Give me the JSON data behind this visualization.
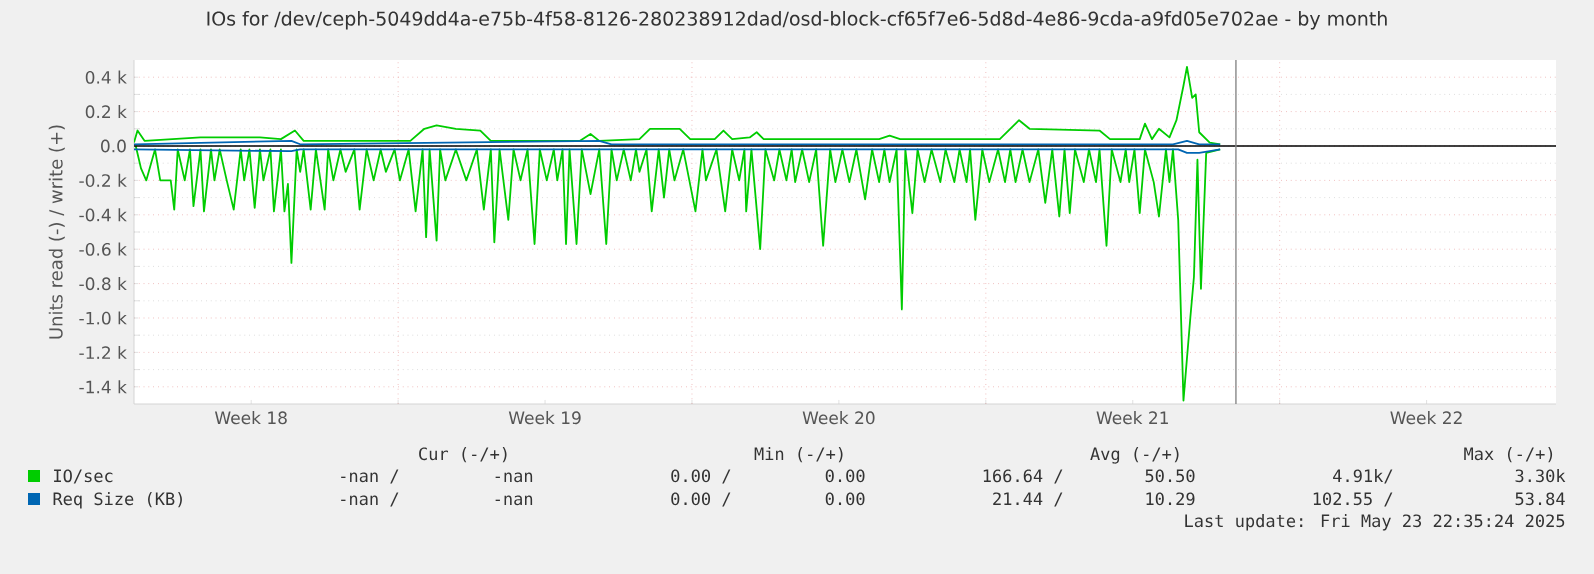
{
  "chart_data": {
    "type": "line",
    "title": "IOs for /dev/ceph-5049dd4a-e75b-4f58-8126-280238912dad/osd-block-cf65f7e6-5d8d-4e86-9cda-a9fd05e702ae - by month",
    "ylabel": "Units read (-) / write (+)",
    "xlim": [
      "2025-04-28T17:00",
      "2025-06-01T14:00"
    ],
    "xticks": [
      {
        "value": "2025-05-01T12:00",
        "label": "Week 18"
      },
      {
        "value": "2025-05-08T12:00",
        "label": "Week 19"
      },
      {
        "value": "2025-05-15T12:00",
        "label": "Week 20"
      },
      {
        "value": "2025-05-22T12:00",
        "label": "Week 21"
      },
      {
        "value": "2025-05-29T12:00",
        "label": "Week 22"
      },
      {
        "value": "2025-05-05T00:00",
        "label": null
      },
      {
        "value": "2025-05-12T00:00",
        "label": null
      },
      {
        "value": "2025-05-19T00:00",
        "label": null
      },
      {
        "value": "2025-05-26T00:00",
        "label": null
      }
    ],
    "ylim": [
      -1.5,
      0.5
    ],
    "yticks": [
      {
        "value": -1.4,
        "label": "-1.4 k"
      },
      {
        "value": -1.2,
        "label": "-1.2 k"
      },
      {
        "value": -1.0,
        "label": "-1.0 k"
      },
      {
        "value": -0.8,
        "label": "-0.8 k"
      },
      {
        "value": -0.6,
        "label": "-0.6 k"
      },
      {
        "value": -0.4,
        "label": "-0.4 k"
      },
      {
        "value": -0.2,
        "label": "-0.2 k"
      },
      {
        "value": 0,
        "label": "0.0"
      },
      {
        "value": 0.2,
        "label": "0.2 k"
      },
      {
        "value": 0.4,
        "label": "0.4 k"
      }
    ],
    "grid": true,
    "legend": "bottom",
    "ref_lines": [
      {
        "axis": "y",
        "value": 0,
        "color": "#000000"
      },
      {
        "axis": "x",
        "value": "2025-05-24T23:00",
        "color": "#888888"
      }
    ],
    "series": [
      {
        "name": "IO/sec",
        "color": "#00cc00",
        "x": [
          "2025-04-28T17:00",
          "2025-04-28T19:00",
          "2025-04-28T23:00",
          "2025-04-30T07:00",
          "2025-05-01T17:00",
          "2025-05-02T05:00",
          "2025-05-02T13:00",
          "2025-05-02T18:00",
          "2025-05-05T07:00",
          "2025-05-05T15:00",
          "2025-05-05T22:00",
          "2025-05-06T09:00",
          "2025-05-06T23:00",
          "2025-05-07T05:00",
          "2025-05-09T08:00",
          "2025-05-09T14:00",
          "2025-05-09T19:00",
          "2025-05-10T18:00",
          "2025-05-11T00:00",
          "2025-05-11T17:00",
          "2025-05-11T23:00",
          "2025-05-12T13:00",
          "2025-05-12T18:00",
          "2025-05-12T23:00",
          "2025-05-13T09:00",
          "2025-05-13T13:00",
          "2025-05-13T17:00",
          "2025-05-16T11:00",
          "2025-05-16T17:00",
          "2025-05-16T23:00",
          "2025-05-19T08:00",
          "2025-05-19T19:00",
          "2025-05-20T01:00",
          "2025-05-21T17:00",
          "2025-05-21T23:00",
          "2025-05-22T16:00",
          "2025-05-22T19:00",
          "2025-05-22T23:00",
          "2025-05-23T03:00",
          "2025-05-23T09:00",
          "2025-05-23T13:00",
          "2025-05-23T17:00",
          "2025-05-23T19:00",
          "2025-05-23T22:00",
          "2025-05-24T00:00",
          "2025-05-24T02:00",
          "2025-05-24T08:00",
          "2025-05-24T14:00"
        ],
        "values": [
          0.02,
          0.09,
          0.03,
          0.05,
          0.05,
          0.04,
          0.09,
          0.03,
          0.03,
          0.1,
          0.12,
          0.1,
          0.09,
          0.03,
          0.03,
          0.07,
          0.03,
          0.04,
          0.1,
          0.1,
          0.04,
          0.04,
          0.09,
          0.04,
          0.05,
          0.08,
          0.04,
          0.04,
          0.06,
          0.04,
          0.04,
          0.15,
          0.1,
          0.09,
          0.04,
          0.04,
          0.13,
          0.04,
          0.1,
          0.05,
          0.15,
          0.35,
          0.46,
          0.28,
          0.3,
          0.08,
          0.02,
          0.01
        ]
      },
      {
        "color": "#00cc00",
        "x": [
          "2025-04-28T18:00",
          "2025-04-28T21:00",
          "2025-04-29T00:00",
          "2025-04-29T05:00",
          "2025-04-29T08:00",
          "2025-04-29T14:00",
          "2025-04-29T16:00",
          "2025-04-29T18:00",
          "2025-04-29T22:00",
          "2025-04-30T01:00",
          "2025-04-30T03:00",
          "2025-04-30T07:00",
          "2025-04-30T09:00",
          "2025-04-30T13:00",
          "2025-04-30T15:00",
          "2025-04-30T18:00",
          "2025-04-30T22:00",
          "2025-05-01T02:00",
          "2025-05-01T06:00",
          "2025-05-01T08:00",
          "2025-05-01T11:00",
          "2025-05-01T14:00",
          "2025-05-01T17:00",
          "2025-05-01T19:00",
          "2025-05-01T23:00",
          "2025-05-02T01:00",
          "2025-05-02T05:00",
          "2025-05-02T07:00",
          "2025-05-02T09:00",
          "2025-05-02T11:00",
          "2025-05-02T14:00",
          "2025-05-02T16:00",
          "2025-05-02T18:00",
          "2025-05-02T22:00",
          "2025-05-03T01:00",
          "2025-05-03T06:00",
          "2025-05-03T08:00",
          "2025-05-03T11:00",
          "2025-05-03T15:00",
          "2025-05-03T18:00",
          "2025-05-03T23:00",
          "2025-05-04T02:00",
          "2025-05-04T06:00",
          "2025-05-04T10:00",
          "2025-05-04T14:00",
          "2025-05-04T17:00",
          "2025-05-04T22:00",
          "2025-05-05T01:00",
          "2025-05-05T06:00",
          "2025-05-05T10:00",
          "2025-05-05T14:00",
          "2025-05-05T16:00",
          "2025-05-05T18:00",
          "2025-05-05T22:00",
          "2025-05-06T00:00",
          "2025-05-06T03:00",
          "2025-05-06T09:00",
          "2025-05-06T15:00",
          "2025-05-06T21:00",
          "2025-05-07T01:00",
          "2025-05-07T05:00",
          "2025-05-07T07:00",
          "2025-05-07T10:00",
          "2025-05-07T15:00",
          "2025-05-07T18:00",
          "2025-05-07T22:00",
          "2025-05-08T02:00",
          "2025-05-08T06:00",
          "2025-05-08T09:00",
          "2025-05-08T13:00",
          "2025-05-08T17:00",
          "2025-05-08T19:00",
          "2025-05-08T22:00",
          "2025-05-09T00:00",
          "2025-05-09T02:00",
          "2025-05-09T06:00",
          "2025-05-09T09:00",
          "2025-05-09T14:00",
          "2025-05-09T19:00",
          "2025-05-09T23:00",
          "2025-05-10T02:00",
          "2025-05-10T05:00",
          "2025-05-10T09:00",
          "2025-05-10T13:00",
          "2025-05-10T16:00",
          "2025-05-10T18:00",
          "2025-05-10T22:00",
          "2025-05-11T01:00",
          "2025-05-11T05:00",
          "2025-05-11T08:00",
          "2025-05-11T11:00",
          "2025-05-11T14:00",
          "2025-05-11T19:00",
          "2025-05-12T02:00",
          "2025-05-12T06:00",
          "2025-05-12T08:00",
          "2025-05-12T14:00",
          "2025-05-12T19:00",
          "2025-05-12T23:00",
          "2025-05-13T03:00",
          "2025-05-13T06:00",
          "2025-05-13T07:00",
          "2025-05-13T10:00",
          "2025-05-13T15:00",
          "2025-05-13T18:00",
          "2025-05-13T23:00",
          "2025-05-14T02:00",
          "2025-05-14T06:00",
          "2025-05-14T09:00",
          "2025-05-14T11:00",
          "2025-05-14T15:00",
          "2025-05-14T19:00",
          "2025-05-14T23:00",
          "2025-05-15T03:00",
          "2025-05-15T07:00",
          "2025-05-15T10:00",
          "2025-05-15T14:00",
          "2025-05-15T18:00",
          "2025-05-15T22:00",
          "2025-05-16T03:00",
          "2025-05-16T07:00",
          "2025-05-16T11:00",
          "2025-05-16T14:00",
          "2025-05-16T17:00",
          "2025-05-16T21:00",
          "2025-05-17T00:00",
          "2025-05-17T02:00",
          "2025-05-17T06:00",
          "2025-05-17T09:00",
          "2025-05-17T13:00",
          "2025-05-17T17:00",
          "2025-05-17T22:00",
          "2025-05-18T01:00",
          "2025-05-18T06:00",
          "2025-05-18T09:00",
          "2025-05-18T13:00",
          "2025-05-18T15:00",
          "2025-05-18T18:00",
          "2025-05-18T22:00",
          "2025-05-19T02:00",
          "2025-05-19T07:00",
          "2025-05-19T11:00",
          "2025-05-19T14:00",
          "2025-05-19T17:00",
          "2025-05-19T21:00",
          "2025-05-20T01:00",
          "2025-05-20T06:00",
          "2025-05-20T10:00",
          "2025-05-20T14:00",
          "2025-05-20T18:00",
          "2025-05-20T21:00",
          "2025-05-21T00:00",
          "2025-05-21T03:00",
          "2025-05-21T08:00",
          "2025-05-21T11:00",
          "2025-05-21T15:00",
          "2025-05-21T17:00",
          "2025-05-21T21:00",
          "2025-05-22T00:00",
          "2025-05-22T05:00",
          "2025-05-22T08:00",
          "2025-05-22T10:00",
          "2025-05-22T13:00",
          "2025-05-22T16:00",
          "2025-05-22T19:00",
          "2025-05-23T00:00",
          "2025-05-23T03:00",
          "2025-05-23T07:00",
          "2025-05-23T09:00",
          "2025-05-23T11:00",
          "2025-05-23T14:00",
          "2025-05-23T17:00",
          "2025-05-23T21:00",
          "2025-05-23T23:00",
          "2025-05-24T01:00",
          "2025-05-24T03:00",
          "2025-05-24T06:00",
          "2025-05-24T14:00"
        ],
        "values": [
          0,
          -0.13,
          -0.2,
          -0.02,
          -0.2,
          -0.2,
          -0.37,
          -0.02,
          -0.2,
          -0.02,
          -0.35,
          -0.02,
          -0.38,
          -0.02,
          -0.2,
          -0.02,
          -0.2,
          -0.37,
          -0.02,
          -0.2,
          -0.02,
          -0.36,
          -0.02,
          -0.2,
          -0.02,
          -0.38,
          -0.02,
          -0.38,
          -0.22,
          -0.68,
          -0.02,
          -0.15,
          -0.02,
          -0.37,
          -0.02,
          -0.37,
          -0.02,
          -0.2,
          -0.02,
          -0.15,
          -0.02,
          -0.37,
          -0.02,
          -0.2,
          -0.02,
          -0.15,
          -0.02,
          -0.2,
          -0.02,
          -0.38,
          -0.02,
          -0.53,
          -0.02,
          -0.55,
          -0.02,
          -0.2,
          -0.02,
          -0.2,
          -0.02,
          -0.37,
          -0.02,
          -0.56,
          -0.02,
          -0.43,
          -0.02,
          -0.2,
          -0.02,
          -0.57,
          -0.02,
          -0.2,
          -0.02,
          -0.2,
          -0.02,
          -0.57,
          -0.02,
          -0.57,
          -0.02,
          -0.28,
          -0.02,
          -0.57,
          -0.02,
          -0.2,
          -0.02,
          -0.2,
          -0.02,
          -0.15,
          -0.02,
          -0.38,
          -0.02,
          -0.3,
          -0.02,
          -0.2,
          -0.02,
          -0.38,
          -0.02,
          -0.2,
          -0.02,
          -0.38,
          -0.02,
          -0.2,
          -0.02,
          -0.38,
          -0.02,
          -0.6,
          -0.02,
          -0.2,
          -0.02,
          -0.2,
          -0.02,
          -0.21,
          -0.02,
          -0.21,
          -0.02,
          -0.58,
          -0.02,
          -0.21,
          -0.02,
          -0.21,
          -0.02,
          -0.31,
          -0.02,
          -0.21,
          -0.02,
          -0.21,
          -0.02,
          -0.95,
          -0.02,
          -0.39,
          -0.02,
          -0.21,
          -0.02,
          -0.21,
          -0.02,
          -0.21,
          -0.02,
          -0.21,
          -0.02,
          -0.43,
          -0.02,
          -0.21,
          -0.02,
          -0.21,
          -0.02,
          -0.21,
          -0.02,
          -0.21,
          -0.02,
          -0.33,
          -0.02,
          -0.41,
          -0.02,
          -0.39,
          -0.02,
          -0.21,
          -0.02,
          -0.21,
          -0.02,
          -0.58,
          -0.02,
          -0.21,
          -0.02,
          -0.21,
          -0.02,
          -0.39,
          -0.02,
          -0.21,
          -0.41,
          -0.02,
          -0.21,
          -0.02,
          -0.43,
          -1.48,
          -0.99,
          -0.76,
          -0.08,
          -0.83,
          -0.04,
          -0.02
        ]
      },
      {
        "name": "Req Size (KB)",
        "color": "#0066b3",
        "x": [
          "2025-04-28T17:00",
          "2025-05-02T11:00",
          "2025-05-02T16:00",
          "2025-05-09T19:00",
          "2025-05-10T02:00",
          "2025-05-23T11:00",
          "2025-05-23T19:00",
          "2025-05-24T02:00",
          "2025-05-24T14:00"
        ],
        "values": [
          0.01,
          0.03,
          0.01,
          0.03,
          0.01,
          0.01,
          0.03,
          0.01,
          0.01
        ]
      },
      {
        "color": "#0066b3",
        "x": [
          "2025-04-28T17:00",
          "2025-05-02T11:00",
          "2025-05-02T16:00",
          "2025-05-23T14:00",
          "2025-05-23T19:00",
          "2025-05-24T02:00",
          "2025-05-24T14:00"
        ],
        "values": [
          -0.02,
          -0.03,
          -0.02,
          -0.02,
          -0.04,
          -0.04,
          -0.02
        ]
      }
    ],
    "annotations": [
      "Cur (-/+)",
      "Min (-/+)",
      "Avg (-/+)",
      "Max (-/+)",
      "-nan /",
      "-nan",
      "0.00 /",
      "0.00",
      "166.64 /",
      "50.50",
      "4.91k/",
      "3.30k",
      "-nan /",
      "-nan",
      "0.00 /",
      "0.00",
      "21.44 /",
      "10.29",
      "102.55 /",
      "53.84",
      "Last update: Fri May 23 22:35:24 2025"
    ]
  }
}
